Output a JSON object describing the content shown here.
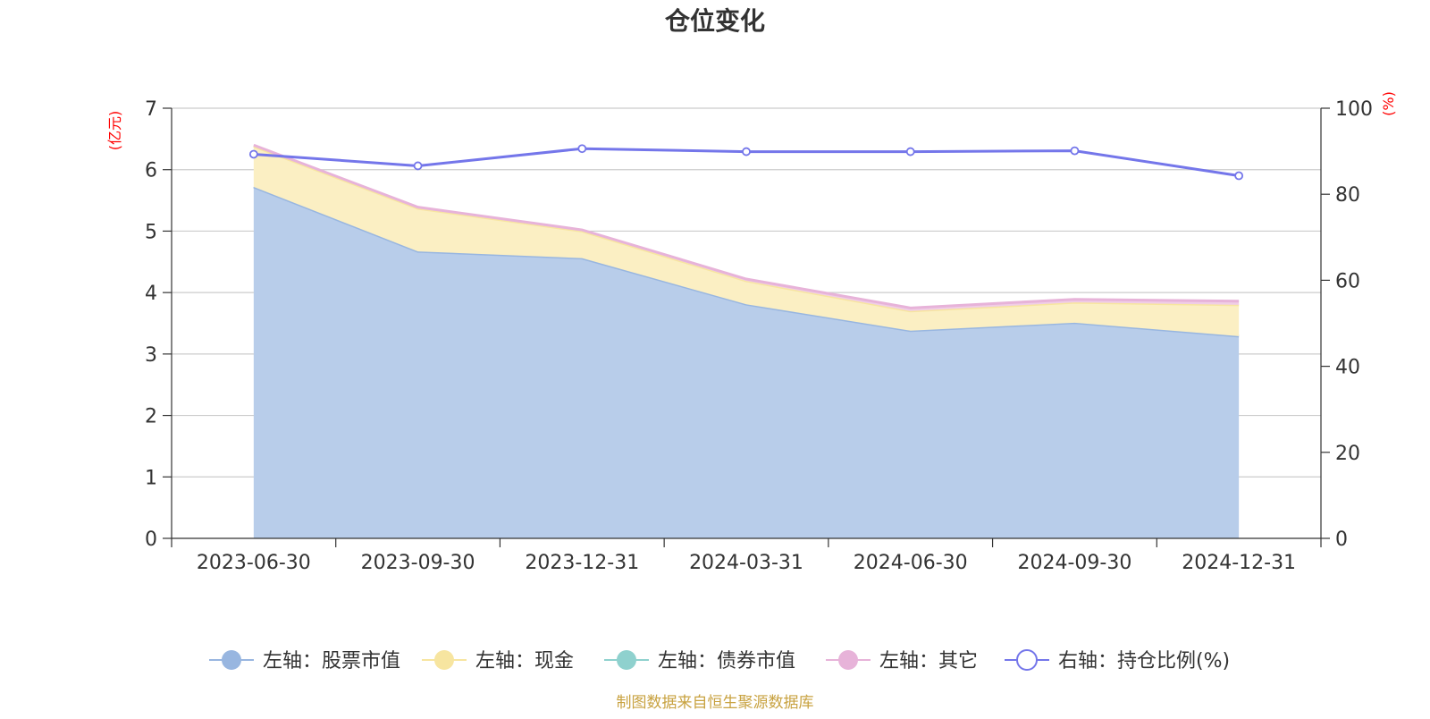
{
  "chart_data": {
    "type": "area",
    "title": "仓位变化",
    "left_unit": "(亿元)",
    "right_unit": "(%)",
    "categories": [
      "2023-06-30",
      "2023-09-30",
      "2023-12-31",
      "2024-03-31",
      "2024-06-30",
      "2024-09-30",
      "2024-12-31"
    ],
    "ylim_left": [
      0,
      7
    ],
    "yticks_left": [
      "0",
      "1",
      "2",
      "3",
      "4",
      "5",
      "6",
      "7"
    ],
    "ylim_right": [
      0,
      100
    ],
    "yticks_right": [
      "0",
      "20",
      "40",
      "60",
      "80",
      "100"
    ],
    "grid": true,
    "legend_position": "bottom",
    "stacked_series": [
      {
        "name": "左轴：股票市值",
        "color": "#98b6e0",
        "fill": "#b8cdea",
        "values": [
          5.72,
          4.67,
          4.56,
          3.81,
          3.38,
          3.51,
          3.29
        ]
      },
      {
        "name": "左轴：现金",
        "color": "#f7e5a0",
        "fill": "#fbefc3",
        "values": [
          0.66,
          0.7,
          0.44,
          0.38,
          0.32,
          0.33,
          0.51
        ]
      },
      {
        "name": "左轴：债券市值",
        "color": "#8fd1ce",
        "fill": "#bfe6e4",
        "values": [
          0,
          0,
          0,
          0,
          0,
          0,
          0
        ]
      },
      {
        "name": "左轴：其它",
        "color": "#e7b3d9",
        "fill": "#f0cde6",
        "values": [
          0.02,
          0.02,
          0.02,
          0.03,
          0.05,
          0.05,
          0.06
        ]
      }
    ],
    "line_series": {
      "name": "右轴：持仓比例(%)",
      "color": "#7476ea",
      "values": [
        89.3,
        86.6,
        90.6,
        89.9,
        89.9,
        90.1,
        84.3
      ]
    }
  },
  "source_note": "制图数据来自恒生聚源数据库"
}
